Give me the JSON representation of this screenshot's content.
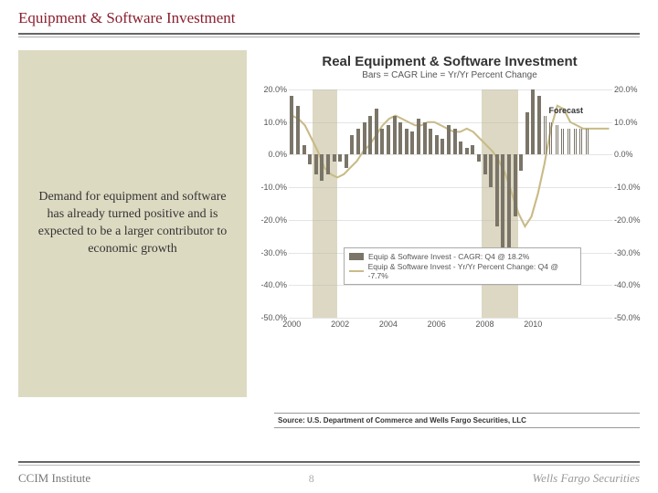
{
  "header": {
    "title": "Equipment & Software Investment"
  },
  "sidebar": {
    "text": "Demand for equipment and software has already turned positive and is expected to be a larger contributor to economic growth"
  },
  "chart": {
    "title": "Real Equipment & Software Investment",
    "subtitle": "Bars = CAGR     Line = Yr/Yr Percent Change",
    "forecast_label": "Forecast",
    "type": "bar+line",
    "background_color": "#ffffff",
    "recession_band_color": "#dcd8c3",
    "grid_color": "#bbbbbb",
    "ylim": [
      -50,
      20
    ],
    "yticks": [
      20,
      10,
      0,
      -10,
      -20,
      -30,
      -40,
      -50
    ],
    "ytick_labels": [
      "20.0%",
      "10.0%",
      "0.0%",
      "-10.0%",
      "-20.0%",
      "-30.0%",
      "-40.0%",
      "-50.0%"
    ],
    "x_years": [
      2000,
      2002,
      2004,
      2006,
      2008,
      2010
    ],
    "x_range_quarters": 50,
    "recessions": [
      {
        "start_q": 4,
        "end_q": 8
      },
      {
        "start_q": 32,
        "end_q": 38
      }
    ],
    "bar_series": {
      "color": "#7a7568",
      "forecast_start_q": 42,
      "values": [
        18,
        15,
        3,
        -3,
        -6,
        -8,
        -6,
        -2,
        -2,
        -4,
        6,
        8,
        10,
        12,
        14,
        8,
        9,
        12,
        10,
        8,
        7,
        11,
        10,
        8,
        6,
        5,
        9,
        8,
        4,
        2,
        3,
        -2,
        -6,
        -10,
        -22,
        -30,
        -38,
        -19,
        -5,
        13,
        20,
        18,
        12,
        10,
        9,
        8,
        8,
        8,
        8,
        8
      ]
    },
    "line_series": {
      "color": "#c9bb87",
      "width": 2,
      "values": [
        12,
        11,
        9,
        5,
        1,
        -4,
        -6,
        -7,
        -6,
        -4,
        -2,
        1,
        3,
        6,
        9,
        11,
        12,
        11,
        10,
        9,
        9,
        10,
        10,
        9,
        8,
        7,
        7,
        8,
        7,
        5,
        3,
        1,
        -2,
        -6,
        -12,
        -18,
        -22,
        -19,
        -12,
        -3,
        8,
        15,
        14,
        10,
        9,
        8,
        8,
        8,
        8,
        8
      ]
    },
    "legend": {
      "bar_label": "Equip & Software Invest - CAGR: Q4 @ 18.2%",
      "line_label": "Equip & Software Invest - Yr/Yr Percent Change: Q4 @ -7.7%"
    },
    "title_fontsize": 15,
    "subtitle_fontsize": 10,
    "tick_fontsize": 9
  },
  "source": {
    "text": "Source: U.S. Department of Commerce and Wells Fargo Securities, LLC"
  },
  "footer": {
    "left": "CCIM Institute",
    "page": "8",
    "logo": "Wells Fargo Securities"
  }
}
